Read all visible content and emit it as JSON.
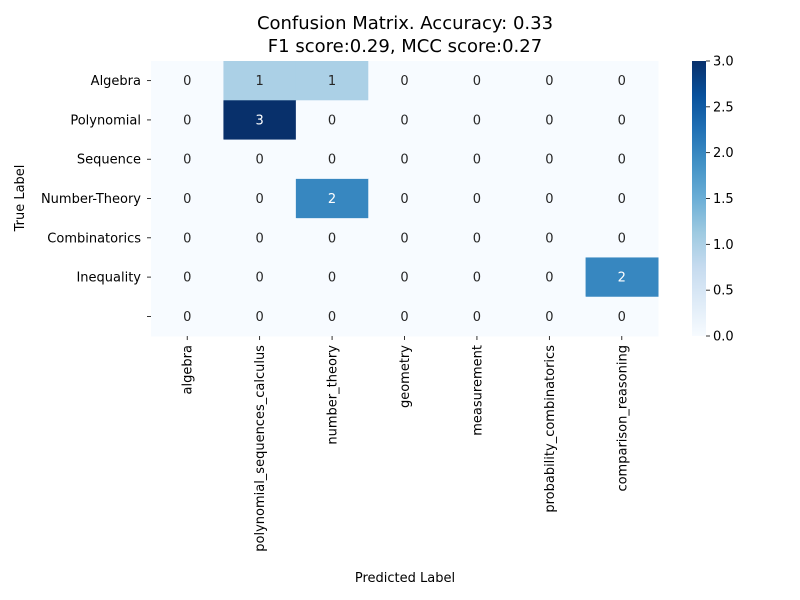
{
  "chart_data": {
    "type": "heatmap",
    "title_line1": "Confusion Matrix. Accuracy: 0.33",
    "title_line2": "F1 score:0.29, MCC score:0.27",
    "xlabel": "Predicted Label",
    "ylabel": "True Label",
    "x_categories": [
      "algebra",
      "polynomial_sequences_calculus",
      "number_theory",
      "geometry",
      "measurement",
      "probability_combinatorics",
      "comparison_reasoning"
    ],
    "y_categories": [
      "Algebra",
      "Polynomial",
      "Sequence",
      "Number-Theory",
      "Combinatorics",
      "Inequality",
      ""
    ],
    "values": [
      [
        0,
        1,
        1,
        0,
        0,
        0,
        0
      ],
      [
        0,
        3,
        0,
        0,
        0,
        0,
        0
      ],
      [
        0,
        0,
        0,
        0,
        0,
        0,
        0
      ],
      [
        0,
        0,
        2,
        0,
        0,
        0,
        0
      ],
      [
        0,
        0,
        0,
        0,
        0,
        0,
        0
      ],
      [
        0,
        0,
        0,
        0,
        0,
        0,
        2
      ],
      [
        0,
        0,
        0,
        0,
        0,
        0,
        0
      ]
    ],
    "colorbar": {
      "min": 0,
      "max": 3,
      "ticks": [
        "0.0",
        "0.5",
        "1.0",
        "1.5",
        "2.0",
        "2.5",
        "3.0"
      ],
      "colormap": "Blues"
    },
    "grid": false
  }
}
